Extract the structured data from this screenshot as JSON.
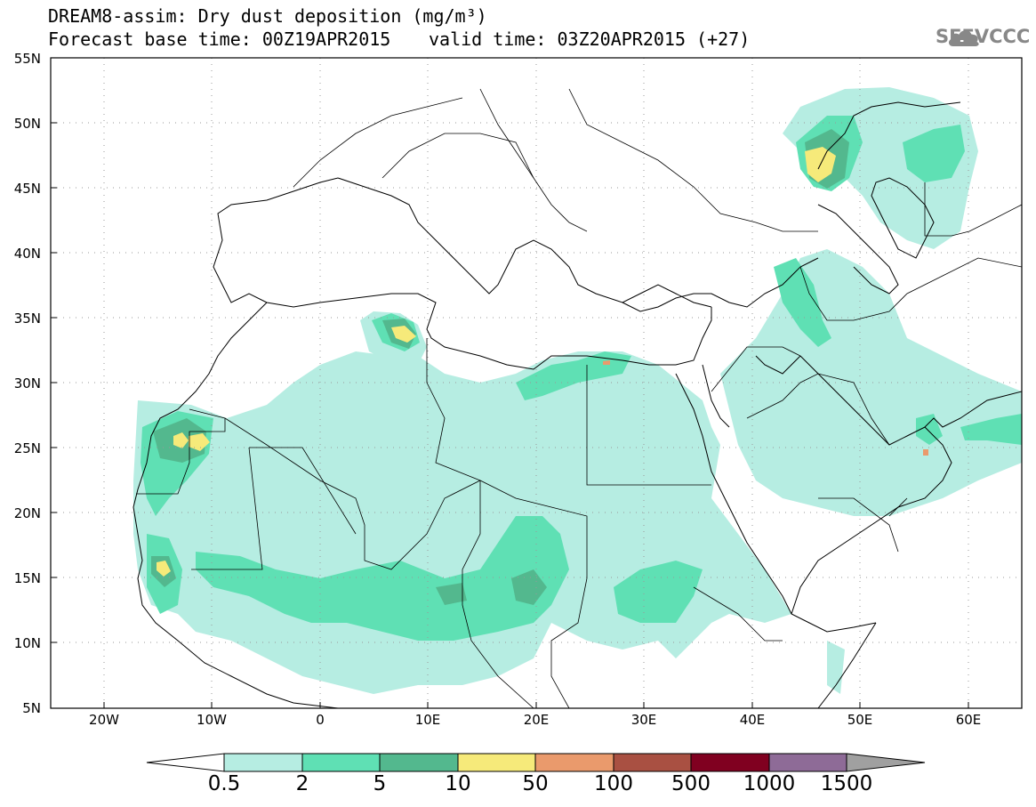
{
  "title": {
    "line1": "DREAM8-assim: Dry dust deposition (mg/m³)",
    "base": "Forecast base time: 00Z19APR2015",
    "valid": "valid time: 03Z20APR2015 (+27)"
  },
  "logo": {
    "text": "SEEVCCC",
    "icon": "cloud-logo-icon",
    "color": "#888888"
  },
  "axes": {
    "lat_ticks": [
      "55N",
      "50N",
      "45N",
      "40N",
      "35N",
      "30N",
      "25N",
      "20N",
      "15N",
      "10N",
      "5N"
    ],
    "lon_ticks": [
      "20W",
      "10W",
      "0",
      "10E",
      "20E",
      "30E",
      "40E",
      "50E",
      "60E"
    ]
  },
  "legend": {
    "labels": [
      "0.5",
      "2",
      "5",
      "10",
      "50",
      "100",
      "500",
      "1000",
      "1500"
    ],
    "colors": [
      "#b6ede2",
      "#5fe0b4",
      "#53b88e",
      "#f6ea7a",
      "#ea9a6c",
      "#a95042",
      "#800020",
      "#8e6b97",
      "#a0a0a0"
    ]
  }
}
